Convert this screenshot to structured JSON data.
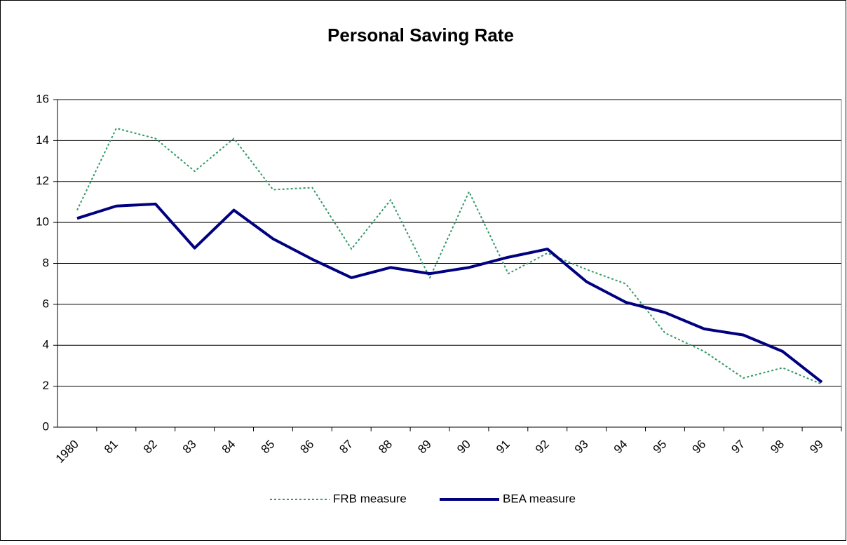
{
  "chart_data": {
    "type": "line",
    "title": "Personal Saving Rate",
    "categories": [
      "1980",
      "81",
      "82",
      "83",
      "84",
      "85",
      "86",
      "87",
      "88",
      "89",
      "90",
      "91",
      "92",
      "93",
      "94",
      "95",
      "96",
      "97",
      "98",
      "99"
    ],
    "series": [
      {
        "name": "FRB measure",
        "color": "#339966",
        "dash": "dotted",
        "values": [
          10.6,
          14.6,
          14.1,
          12.5,
          14.1,
          11.6,
          11.7,
          8.7,
          11.1,
          7.3,
          11.5,
          7.5,
          8.5,
          7.7,
          7.0,
          4.6,
          3.7,
          2.4,
          2.9,
          2.1
        ]
      },
      {
        "name": "BEA measure",
        "color": "#000080",
        "dash": "solid",
        "values": [
          10.2,
          10.8,
          10.9,
          8.75,
          10.6,
          9.2,
          8.2,
          7.3,
          7.8,
          7.5,
          7.8,
          8.3,
          8.7,
          7.1,
          6.1,
          5.6,
          4.8,
          4.5,
          3.7,
          2.2
        ]
      }
    ],
    "ylim": [
      0,
      16
    ],
    "yticks": [
      0,
      2,
      4,
      6,
      8,
      10,
      12,
      14,
      16
    ],
    "grid": true,
    "legend": "bottom"
  }
}
